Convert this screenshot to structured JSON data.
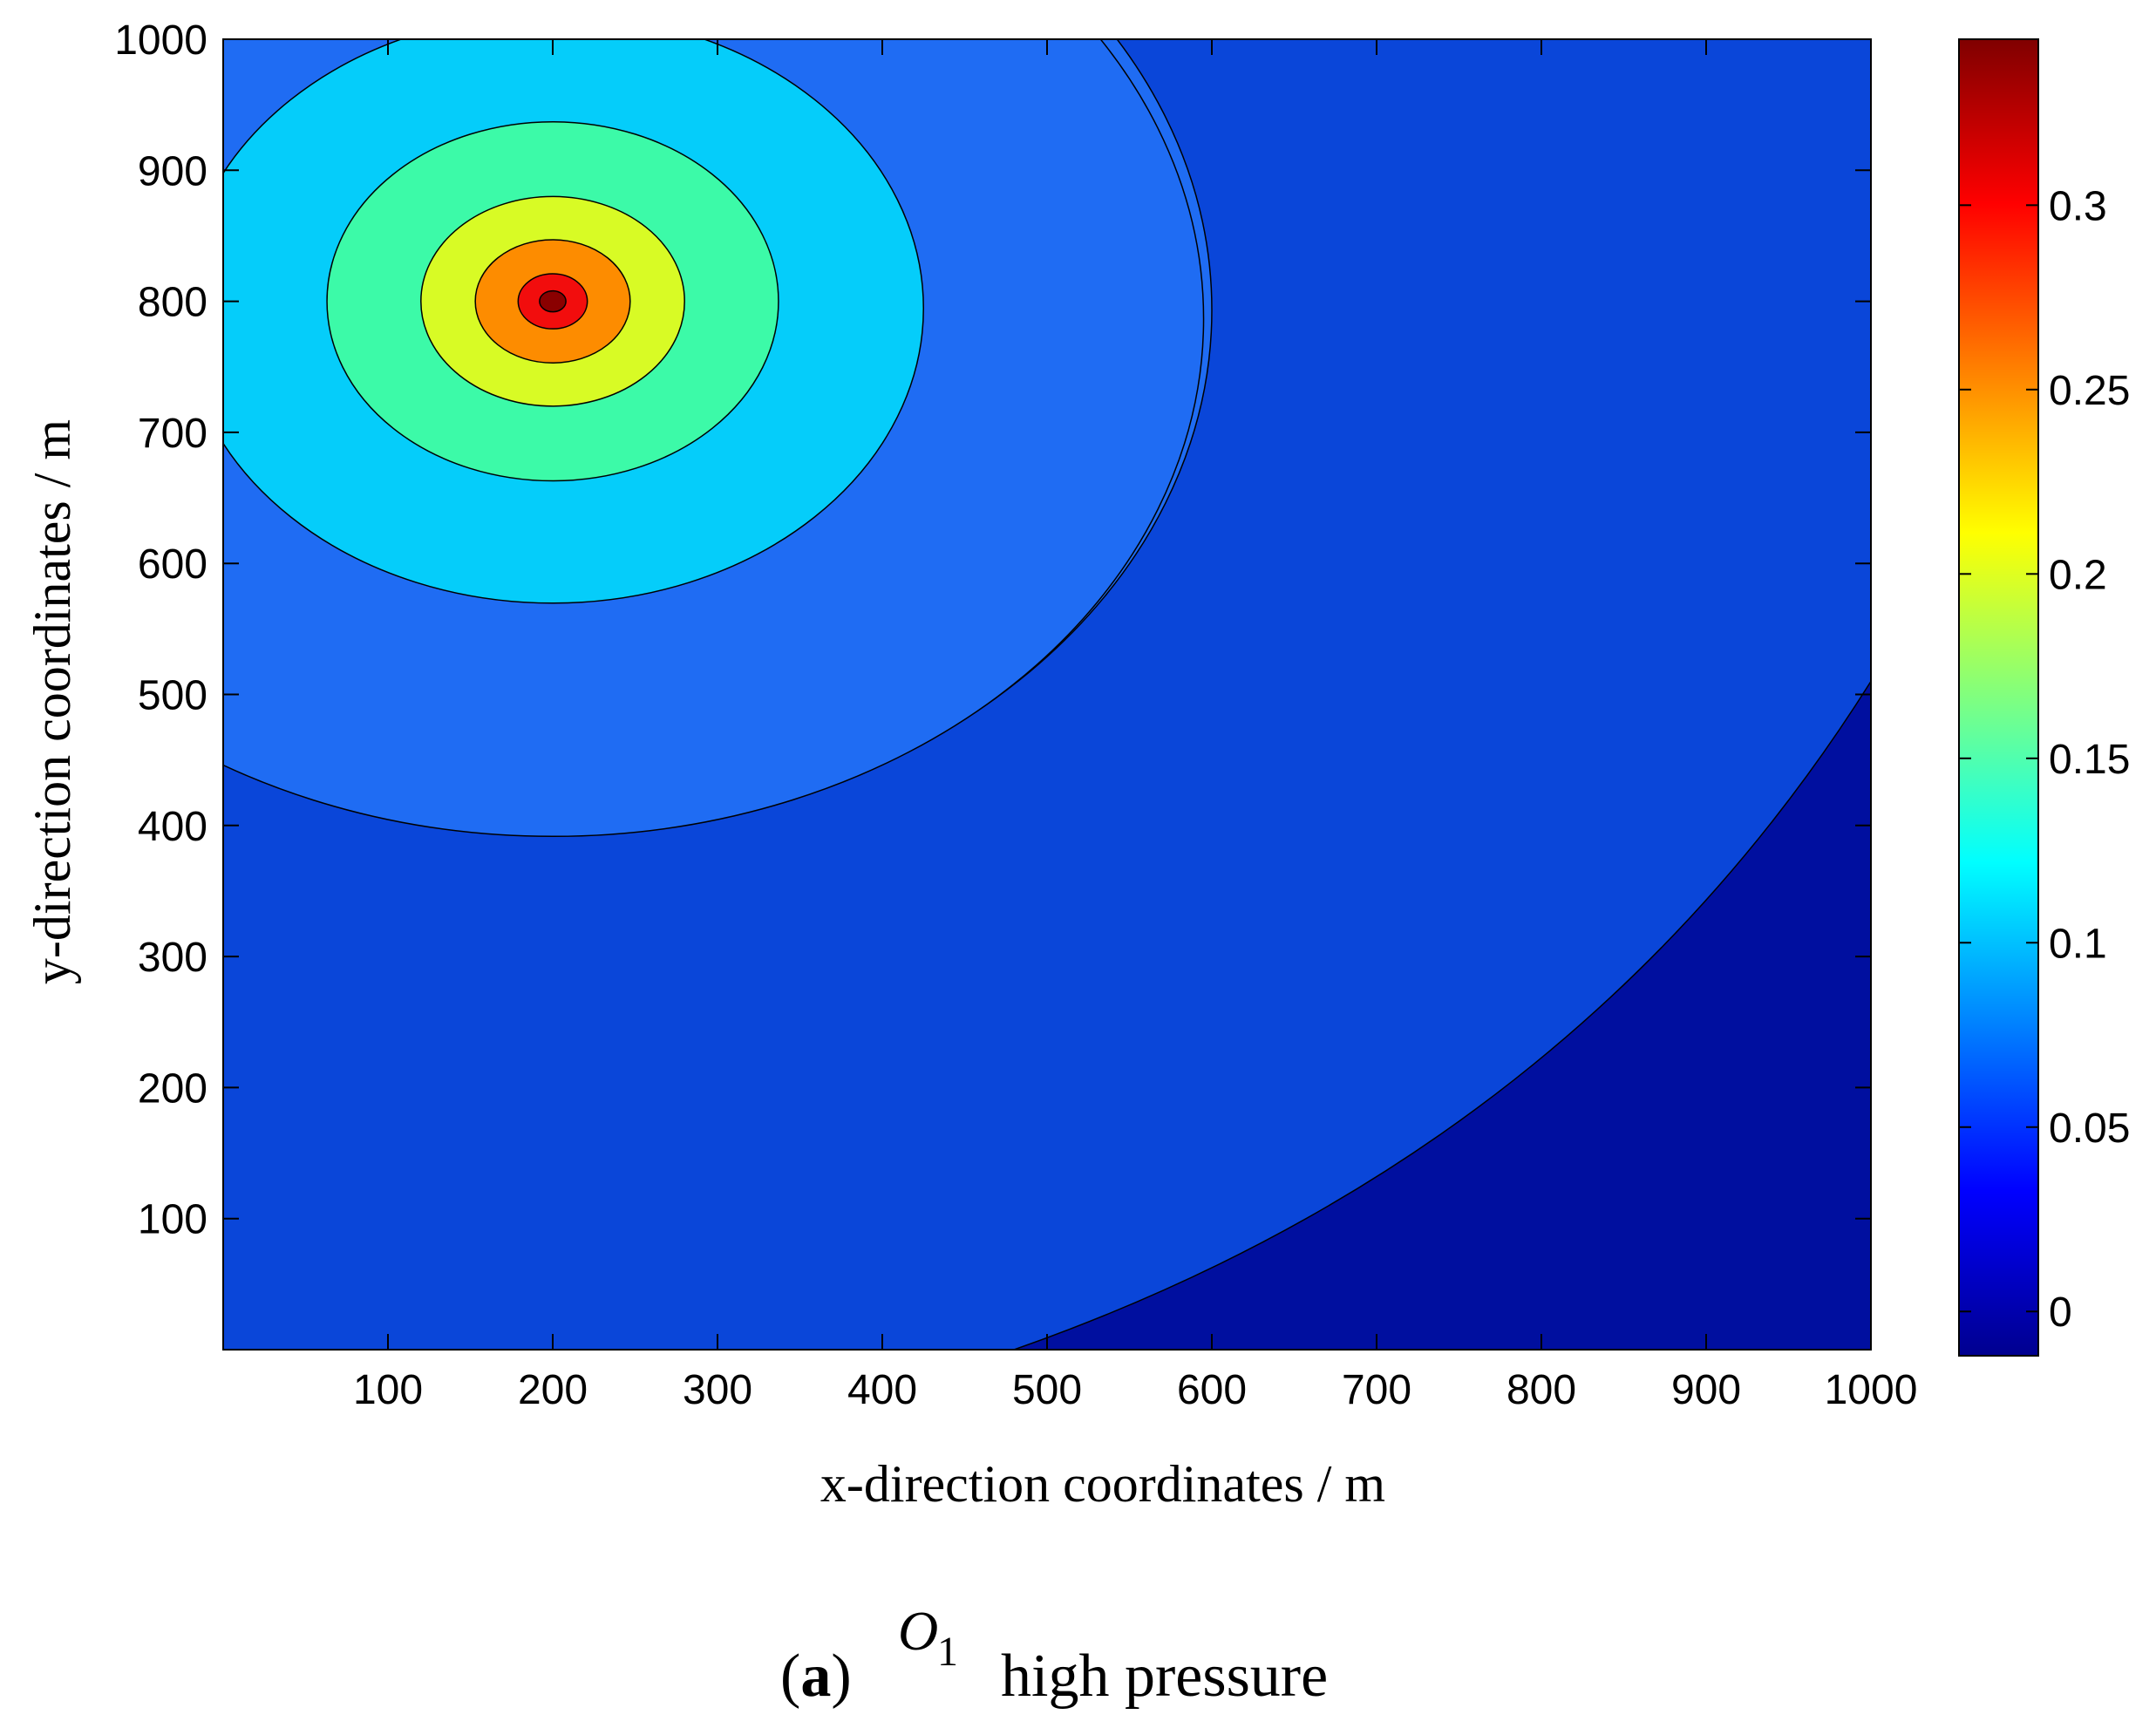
{
  "chart_data": {
    "type": "heatmap",
    "subtype": "filled-contour",
    "xlabel": "x-direction coordinates / m",
    "ylabel": "y-direction coordinates / m",
    "xlim": [
      0,
      1000
    ],
    "ylim": [
      0,
      1000
    ],
    "x_ticks": [
      100,
      200,
      300,
      400,
      500,
      600,
      700,
      800,
      900,
      1000
    ],
    "y_ticks": [
      100,
      200,
      300,
      400,
      500,
      600,
      700,
      800,
      900,
      1000
    ],
    "x_tick_labels": [
      "100",
      "200",
      "300",
      "400",
      "500",
      "600",
      "700",
      "800",
      "900",
      "1000"
    ],
    "y_tick_labels": [
      "100",
      "200",
      "300",
      "400",
      "500",
      "600",
      "700",
      "800",
      "900",
      "1000"
    ],
    "source_location": {
      "x": 200,
      "y": 800
    },
    "contour_levels": [
      {
        "level": 0.0,
        "color": "#000f9f",
        "boundary": "arc from (480, 0) to (1000, 510)"
      },
      {
        "level": 0.03,
        "color": "#0a46d9",
        "rx": 400,
        "ry": 400
      },
      {
        "level": 0.07,
        "color": "#1f6cf3",
        "rx": 395,
        "ry": 395
      },
      {
        "level": 0.11,
        "color": "#05cdfa",
        "rx": 225,
        "ry": 225
      },
      {
        "level": 0.15,
        "color": "#3cfaa8",
        "rx": 137,
        "ry": 137
      },
      {
        "level": 0.2,
        "color": "#d8fb25",
        "rx": 80,
        "ry": 80
      },
      {
        "level": 0.26,
        "color": "#fd8c00",
        "rx": 47,
        "ry": 47
      },
      {
        "level": 0.31,
        "color": "#f20d0d",
        "rx": 21,
        "ry": 21
      },
      {
        "level": 0.34,
        "color": "#8a0000",
        "rx": 8,
        "ry": 8
      }
    ],
    "colorbar": {
      "range": [
        -0.012,
        0.345
      ],
      "ticks": [
        0,
        0.05,
        0.1,
        0.15,
        0.2,
        0.25,
        0.3
      ],
      "tick_labels": [
        "0",
        "0.05",
        "0.1",
        "0.15",
        "0.2",
        "0.25",
        "0.3"
      ],
      "colormap": "jet"
    },
    "grid": false,
    "legend": "colorbar-right"
  },
  "caption": {
    "prefix_open": "(",
    "letter": "a",
    "prefix_close": ")",
    "symbol": "O",
    "symbol_subscript": "1",
    "text": "high pressure"
  }
}
